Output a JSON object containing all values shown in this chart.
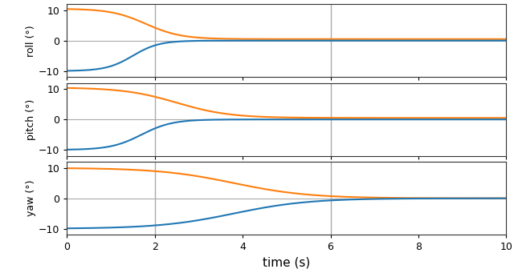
{
  "title": "",
  "xlabel": "time (s)",
  "ylabels": [
    "roll (°)",
    "pitch (°)",
    "yaw (°)"
  ],
  "xlim": [
    0,
    10
  ],
  "ylim_roll": [
    -12,
    12
  ],
  "ylim_pitch": [
    -12,
    12
  ],
  "ylim_yaw": [
    -12,
    12
  ],
  "yticks": [
    -10,
    0,
    10
  ],
  "xticks": [
    0,
    2,
    4,
    6,
    8,
    10
  ],
  "vlines": [
    2,
    6
  ],
  "vline_color": "#aaaaaa",
  "orange_color": "#ff7f0e",
  "blue_color": "#1f77b4",
  "background_color": "#ffffff",
  "t_max": 10.0,
  "n_points": 2000,
  "figsize": [
    6.4,
    3.41
  ],
  "dpi": 100
}
